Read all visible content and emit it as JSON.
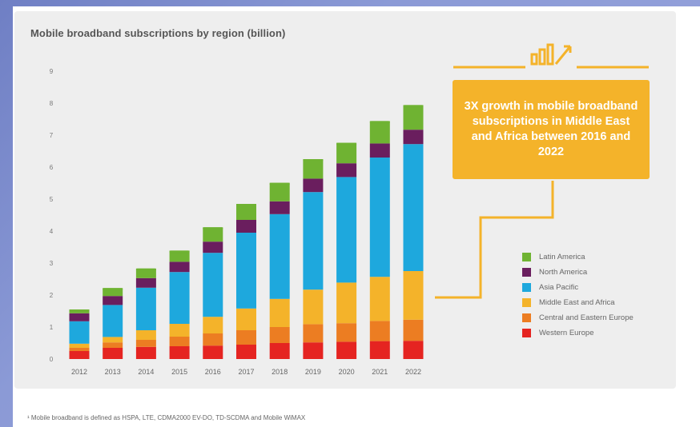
{
  "chart_data": {
    "type": "bar",
    "stacked": true,
    "title": "Mobile broadband subscriptions by region (billion)",
    "ylim": [
      0,
      9
    ],
    "yticks": [
      "0",
      "1",
      "2",
      "3",
      "4",
      "5",
      "6",
      "7",
      "8",
      "9"
    ],
    "categories": [
      "2012",
      "2013",
      "2014",
      "2015",
      "2016",
      "2017",
      "2018",
      "2019",
      "2020",
      "2021",
      "2022"
    ],
    "series": [
      {
        "name": "Western Europe",
        "color": "#e52421",
        "values": [
          0.25,
          0.35,
          0.38,
          0.4,
          0.42,
          0.45,
          0.5,
          0.52,
          0.54,
          0.56,
          0.57
        ]
      },
      {
        "name": "Central and Eastern Europe",
        "color": "#ec7d22",
        "values": [
          0.1,
          0.17,
          0.22,
          0.3,
          0.38,
          0.45,
          0.5,
          0.57,
          0.58,
          0.63,
          0.66
        ]
      },
      {
        "name": "Middle East and Africa",
        "color": "#f4b32a",
        "values": [
          0.13,
          0.17,
          0.3,
          0.4,
          0.52,
          0.68,
          0.88,
          1.08,
          1.27,
          1.38,
          1.52
        ]
      },
      {
        "name": "Asia Pacific",
        "color": "#1ea8dd",
        "values": [
          0.7,
          1.0,
          1.33,
          1.62,
          2.0,
          2.37,
          2.65,
          3.05,
          3.3,
          3.73,
          3.97
        ]
      },
      {
        "name": "North America",
        "color": "#6a1e5e",
        "values": [
          0.25,
          0.28,
          0.3,
          0.32,
          0.35,
          0.4,
          0.4,
          0.42,
          0.43,
          0.44,
          0.45
        ]
      },
      {
        "name": "Latin America",
        "color": "#6fb332",
        "values": [
          0.12,
          0.25,
          0.3,
          0.35,
          0.45,
          0.5,
          0.58,
          0.61,
          0.64,
          0.7,
          0.77
        ]
      }
    ]
  },
  "callout": {
    "text": "3X growth in mobile broadband subscriptions in Middle East and Africa between 2016 and 2022",
    "color": "#f4b32a"
  },
  "icon": "bar-chart-growth-icon",
  "footnote": "¹ Mobile broadband is defined as HSPA, LTE, CDMA2000 EV-DO, TD-SCDMA and Mobile WiMAX"
}
